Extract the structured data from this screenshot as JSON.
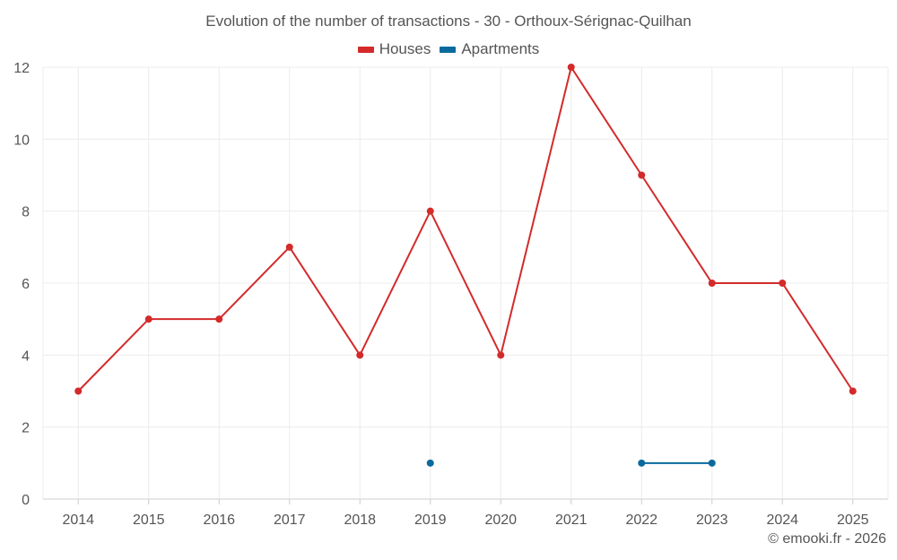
{
  "chart_data": {
    "type": "line",
    "title": "Evolution of the number of transactions - 30 - Orthoux-Sérignac-Quilhan",
    "categories": [
      "2014",
      "2015",
      "2016",
      "2017",
      "2018",
      "2019",
      "2020",
      "2021",
      "2022",
      "2023",
      "2024",
      "2025"
    ],
    "series": [
      {
        "name": "Houses",
        "color": "#d42a2a",
        "values": [
          3,
          5,
          5,
          7,
          4,
          8,
          4,
          12,
          9,
          6,
          6,
          3
        ]
      },
      {
        "name": "Apartments",
        "color": "#0a6a9e",
        "values": [
          null,
          null,
          null,
          null,
          null,
          1,
          null,
          null,
          1,
          1,
          null,
          null
        ]
      }
    ],
    "ylim": [
      0,
      12
    ],
    "yticks": [
      0,
      2,
      4,
      6,
      8,
      10,
      12
    ],
    "xlabel": "",
    "ylabel": "",
    "grid": true,
    "legend": "top-center"
  },
  "credit": "© emooki.fr - 2026"
}
